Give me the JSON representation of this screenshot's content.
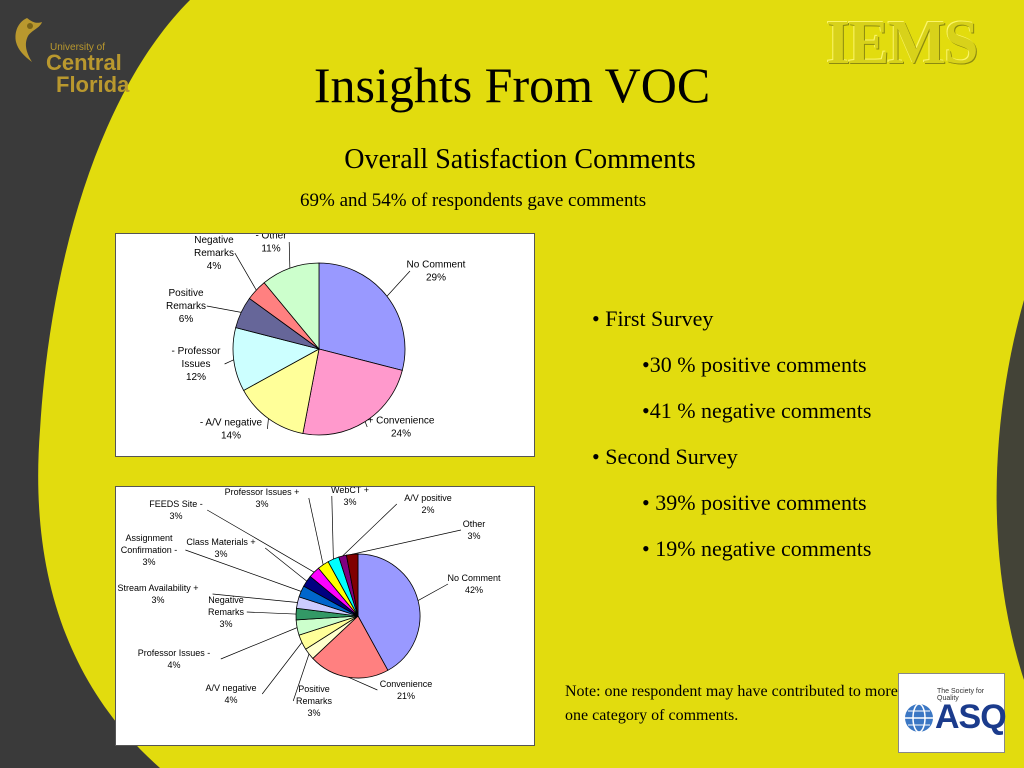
{
  "header": {
    "logo_left": {
      "line1": "University of",
      "line2": "Central",
      "line3": "Florida"
    },
    "logo_right": "IEMS",
    "title": "Insights From VOC",
    "subtitle": "Overall Satisfaction Comments",
    "subnote": "69% and 54%  of respondents gave comments"
  },
  "bullets": {
    "first_survey": "• First Survey",
    "first_pos": "•30 % positive comments",
    "first_neg": "•41 % negative comments",
    "second_survey": "• Second Survey",
    "second_pos": "• 39% positive comments",
    "second_neg": "• 19% negative comments"
  },
  "note": "Note: one respondent may have contributed to more than one category of comments.",
  "asq": {
    "tagline": "The Society for Quality",
    "name": "ASQ"
  },
  "colors": {
    "background": "#e2dc0e",
    "dark": "#3a3a3a"
  },
  "chart_data": [
    {
      "type": "pie",
      "slices": [
        {
          "label": [
            "No Comment",
            "29%"
          ],
          "value": 29,
          "color": "#9999ff"
        },
        {
          "label": [
            "+ Convenience",
            "24%"
          ],
          "value": 24,
          "color": "#ff99cc"
        },
        {
          "label": [
            "- A/V negative",
            "14%"
          ],
          "value": 14,
          "color": "#ffff99"
        },
        {
          "label": [
            "- Professor",
            "Issues",
            "12%"
          ],
          "value": 12,
          "color": "#ccffff"
        },
        {
          "label": [
            "Positive",
            "Remarks",
            "6%"
          ],
          "value": 6,
          "color": "#666699"
        },
        {
          "label": [
            "Negative",
            "Remarks",
            "4%"
          ],
          "value": 4,
          "color": "#ff8080"
        },
        {
          "label": [
            "- Other",
            "11%"
          ],
          "value": 11,
          "color": "#ccffcc"
        }
      ]
    },
    {
      "type": "pie",
      "slices": [
        {
          "label": [
            "No Comment",
            "42%"
          ],
          "value": 42,
          "color": "#9999ff"
        },
        {
          "label": [
            "Convenience",
            "21%"
          ],
          "value": 21,
          "color": "#ff8080"
        },
        {
          "label": [
            "Positive",
            "Remarks",
            "3%"
          ],
          "value": 3,
          "color": "#ffffcc"
        },
        {
          "label": [
            "A/V negative",
            "4%"
          ],
          "value": 4,
          "color": "#ffff99"
        },
        {
          "label": [
            "Professor Issues -",
            "4%"
          ],
          "value": 4,
          "color": "#ccffcc"
        },
        {
          "label": [
            "Negative",
            "Remarks",
            "3%"
          ],
          "value": 3,
          "color": "#339966"
        },
        {
          "label": [
            "Stream Availability +",
            "3%"
          ],
          "value": 3,
          "color": "#ccccff"
        },
        {
          "label": [
            "Assignment",
            "Confirmation -",
            "3%"
          ],
          "value": 3,
          "color": "#0066cc"
        },
        {
          "label": [
            "Class Materials +",
            "3%"
          ],
          "value": 3,
          "color": "#000080"
        },
        {
          "label": [
            "FEEDS Site -",
            "3%"
          ],
          "value": 3,
          "color": "#ff00ff"
        },
        {
          "label": [
            "Professor Issues +",
            "3%"
          ],
          "value": 3,
          "color": "#ffff00"
        },
        {
          "label": [
            "WebCT +",
            "3%"
          ],
          "value": 3,
          "color": "#00ffff"
        },
        {
          "label": [
            "A/V positive",
            "2%"
          ],
          "value": 2,
          "color": "#800080"
        },
        {
          "label": [
            "Other",
            "3%"
          ],
          "value": 3,
          "color": "#800000"
        }
      ]
    }
  ]
}
